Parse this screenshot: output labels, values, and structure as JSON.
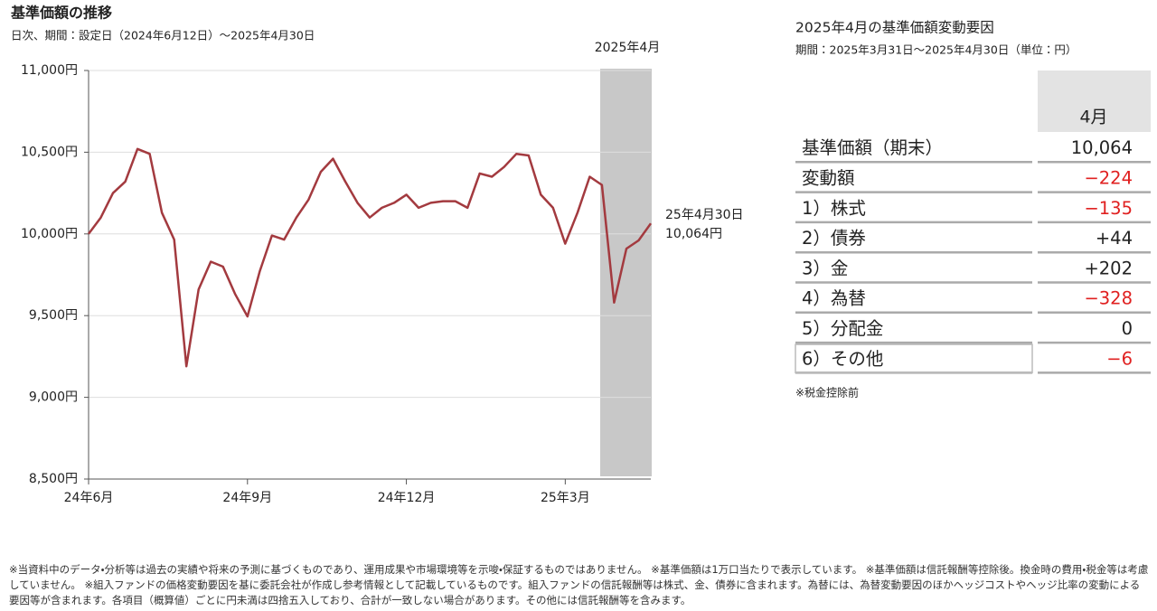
{
  "chart_data": {
    "type": "line",
    "title": "基準価額の推移",
    "subtitle": "日次、期間：設定日（2024年6月12日）～2025年4月30日",
    "categories": [
      "24年6月",
      null,
      null,
      null,
      null,
      null,
      null,
      null,
      null,
      null,
      null,
      null,
      null,
      "24年9月",
      null,
      null,
      null,
      null,
      null,
      null,
      null,
      null,
      null,
      null,
      null,
      null,
      "24年12月",
      null,
      null,
      null,
      null,
      null,
      null,
      null,
      null,
      null,
      null,
      null,
      null,
      "25年3月",
      null,
      null,
      null,
      null,
      null,
      null,
      null
    ],
    "values": [
      10000,
      10100,
      10250,
      10320,
      10520,
      10490,
      10130,
      9965,
      9190,
      9660,
      9830,
      9800,
      9630,
      9495,
      9770,
      9990,
      9965,
      10100,
      10210,
      10380,
      10460,
      10320,
      10190,
      10100,
      10160,
      10190,
      10240,
      10160,
      10190,
      10200,
      10200,
      10160,
      10370,
      10350,
      10410,
      10490,
      10480,
      10240,
      10160,
      9940,
      10130,
      10350,
      10300,
      9580,
      9910,
      9960,
      10064
    ],
    "color": "#a33a3f",
    "ylim": [
      8500,
      11000
    ],
    "yticks": [
      {
        "value": 8500,
        "label": "8,500円"
      },
      {
        "value": 9000,
        "label": "9,000円"
      },
      {
        "value": 9500,
        "label": "9,500円"
      },
      {
        "value": 10000,
        "label": "10,000円"
      },
      {
        "value": 10500,
        "label": "10,500円"
      },
      {
        "value": 11000,
        "label": "11,000円"
      }
    ],
    "grid": true,
    "highlight_label": "2025年4月",
    "annotation": {
      "date": "25年4月30日",
      "value": "10,064円"
    }
  },
  "table": {
    "title": "2025年4月の基準価額変動要因",
    "subtitle": "期間：2025年3月31日～2025年4月30日（単位：円）",
    "header": "4月",
    "rows": [
      [
        "基準価額（期末）",
        "10,064",
        "#222222"
      ],
      [
        "変動額",
        "−224",
        "#e02020"
      ],
      [
        "1）株式",
        "−135",
        "#e02020"
      ],
      [
        "2）債券",
        "+44",
        "#222222"
      ],
      [
        "3）金",
        "+202",
        "#222222"
      ],
      [
        "4）為替",
        "−328",
        "#e02020"
      ],
      [
        "5）分配金",
        "0",
        "#222222"
      ],
      [
        "6）その他",
        "−6",
        "#e02020"
      ]
    ],
    "note": "※税金控除前"
  },
  "footnote": "※当資料中のデータ・分析等は過去の実績や将来の予測に基づくものであり、運用成果や市場環境等を示唆・保証するものではありません。 ※基準価額は1万口当たりで表示しています。 ※基準価額は信託報酬等控除後。換金時の費用・税金等は考慮していません。 ※組入ファンドの価格変動要因を基に委託会社が作成し参考情報として記載しているものです。組入ファンドの信託報酬等は株式、金、債券に含まれます。為替には、為替変動要因のほかヘッジコストやヘッジ比率の変動による要因等が含まれます。各項目（概算値）ごとに円未満は四捨五入しており、合計が一致しない場合があります。その他には信託報酬等を含みます。"
}
